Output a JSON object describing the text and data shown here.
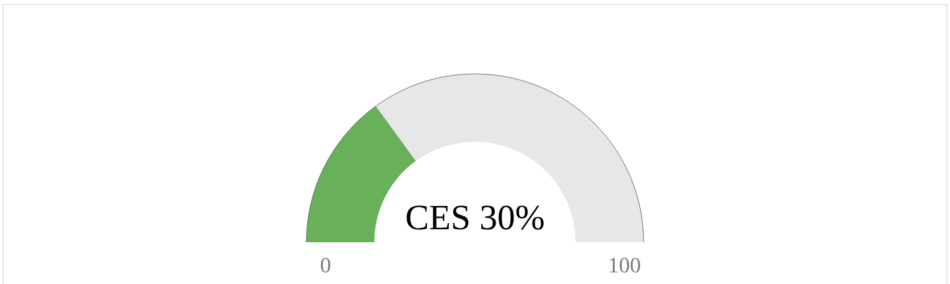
{
  "chart_data": {
    "type": "donut",
    "title": "CES 30%",
    "categories": [
      null,
      null
    ],
    "values": [
      30,
      70
    ],
    "colors": [
      "#68b05a",
      "#e6e7e8"
    ],
    "annotations": [
      "0",
      "100"
    ]
  }
}
